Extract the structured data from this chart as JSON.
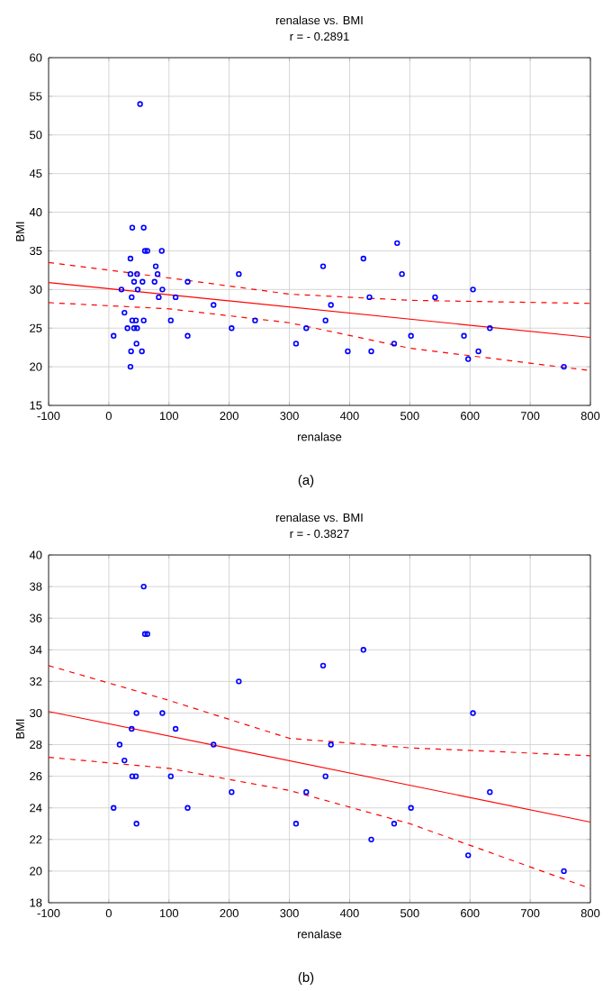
{
  "chart_data": [
    {
      "type": "scatter",
      "title": "renalase vs. BMI",
      "subtitle": "r = - 0.2891",
      "xlabel": "renalase",
      "ylabel": "BMI",
      "xlim": [
        -100,
        800
      ],
      "ylim": [
        15,
        60
      ],
      "xticks": [
        -100,
        0,
        100,
        200,
        300,
        400,
        500,
        600,
        700,
        800
      ],
      "yticks": [
        15,
        20,
        25,
        30,
        35,
        40,
        45,
        50,
        55,
        60
      ],
      "grid": true,
      "annotations": [
        "(a)"
      ],
      "series": [
        {
          "marker": "circle",
          "color": "#0000ff",
          "x": [
            8,
            21,
            26,
            31,
            36,
            36,
            38,
            39,
            37,
            36,
            42,
            42,
            45,
            47,
            46,
            47,
            48,
            55,
            56,
            58,
            60,
            64,
            76,
            78,
            81,
            83,
            88,
            89,
            103,
            111,
            131,
            131,
            174,
            204,
            216,
            243,
            311,
            328,
            356,
            360,
            369,
            397,
            423,
            433,
            436,
            474,
            479,
            487,
            502,
            542,
            590,
            597,
            605,
            614,
            633,
            756,
            39,
            58,
            52
          ],
          "values": [
            24,
            30,
            27,
            25,
            34,
            32,
            29,
            26,
            22,
            20,
            31,
            25,
            26,
            25,
            23,
            32,
            30,
            22,
            31,
            26,
            35,
            35,
            31,
            33,
            32,
            29,
            35,
            30,
            26,
            29,
            31,
            24,
            28,
            25,
            32,
            26,
            23,
            25,
            33,
            26,
            28,
            22,
            34,
            29,
            22,
            23,
            36,
            32,
            24,
            29,
            24,
            21,
            30,
            22,
            25,
            20,
            38,
            38,
            54
          ]
        },
        {
          "type": "line",
          "color": "#ff0000",
          "line_style": "solid",
          "x": [
            -100,
            800
          ],
          "values": [
            30.9,
            23.8
          ]
        },
        {
          "type": "line",
          "color": "#ff0000",
          "line_style": "dashed",
          "x": [
            -100,
            100,
            300,
            500,
            800
          ],
          "values": [
            33.5,
            31.5,
            29.4,
            28.6,
            28.2
          ]
        },
        {
          "type": "line",
          "color": "#ff0000",
          "line_style": "dashed",
          "x": [
            -100,
            100,
            300,
            500,
            800
          ],
          "values": [
            28.3,
            27.5,
            25.7,
            22.4,
            19.5
          ]
        }
      ]
    },
    {
      "type": "scatter",
      "title": "renalase vs. BMI",
      "subtitle": "r = - 0.3827",
      "xlabel": "renalase",
      "ylabel": "BMI",
      "xlim": [
        -100,
        800
      ],
      "ylim": [
        18,
        40
      ],
      "xticks": [
        -100,
        0,
        100,
        200,
        300,
        400,
        500,
        600,
        700,
        800
      ],
      "yticks": [
        18,
        20,
        22,
        24,
        26,
        28,
        30,
        32,
        34,
        36,
        38,
        40
      ],
      "grid": true,
      "annotations": [
        "(b)"
      ],
      "series": [
        {
          "marker": "circle",
          "color": "#0000ff",
          "x": [
            58,
            60,
            64,
            46,
            89,
            38,
            111,
            216,
            356,
            423,
            605,
            18,
            174,
            369,
            26,
            39,
            45,
            103,
            360,
            8,
            131,
            502,
            204,
            328,
            633,
            46,
            311,
            474,
            436,
            597,
            756
          ],
          "values": [
            38,
            35,
            35,
            30,
            30,
            29,
            29,
            32,
            33,
            34,
            30,
            28,
            28,
            28,
            27,
            26,
            26,
            26,
            26,
            24,
            24,
            24,
            25,
            25,
            25,
            23,
            23,
            23,
            22,
            21,
            20
          ]
        },
        {
          "type": "line",
          "color": "#ff0000",
          "line_style": "solid",
          "x": [
            -100,
            800
          ],
          "values": [
            30.1,
            23.1
          ]
        },
        {
          "type": "line",
          "color": "#ff0000",
          "line_style": "dashed",
          "x": [
            -100,
            100,
            300,
            500,
            800
          ],
          "values": [
            33,
            30.8,
            28.4,
            27.8,
            27.3
          ]
        },
        {
          "type": "line",
          "color": "#ff0000",
          "line_style": "dashed",
          "x": [
            -100,
            100,
            300,
            500,
            800
          ],
          "values": [
            27.2,
            26.5,
            25.1,
            23.0,
            18.9
          ]
        }
      ]
    }
  ]
}
